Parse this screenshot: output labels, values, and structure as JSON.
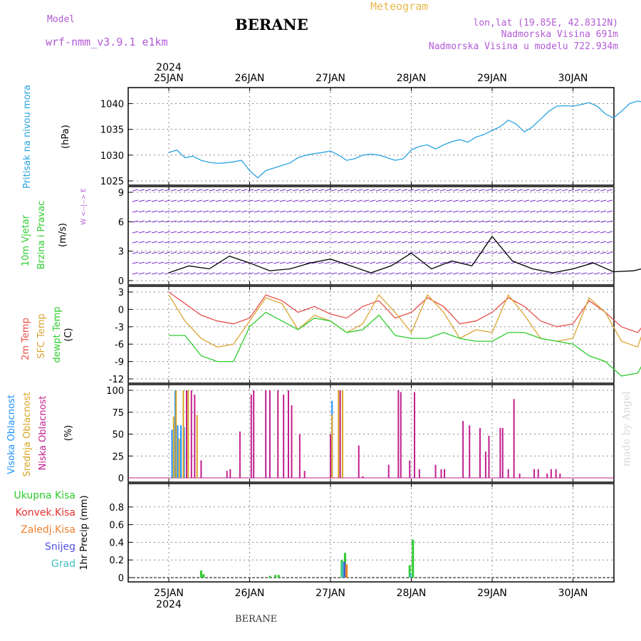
{
  "header": {
    "model_label": "Model",
    "model_name": "wrf-nmm_v3.9.1 e1km",
    "station": "BERANE",
    "product": "Meteogram",
    "lonlat": "lon,lat (19.85E, 42.8312N)",
    "elevation": "Nadmorska Visina 691m",
    "model_elevation": "Nadmorska Visina u modelu 722.934m",
    "footer_station": "BERANE",
    "watermark": "made by Angel"
  },
  "colors": {
    "pressure": "#29a3e0",
    "t2m": "#e8504a",
    "sfc": "#d9a534",
    "dewpt": "#2ecc2e",
    "high_cloud": "#1e90ff",
    "mid_cloud": "#daa520",
    "low_cloud": "#c21f8e",
    "total_precip": "#2ecc2e",
    "conv_precip": "#e83030",
    "frz_precip": "#f08030",
    "snow": "#5050e0",
    "graupel": "#40c0c0",
    "wind_barb": "#7b2fd0",
    "wind_speed": "#000000"
  },
  "time_axis": {
    "top_year": "2024",
    "bottom_year": "2024",
    "dates": [
      "25JAN",
      "26JAN",
      "27JAN",
      "28JAN",
      "29JAN",
      "30JAN"
    ]
  },
  "chart_data": [
    {
      "type": "line",
      "name": "pressure",
      "ylabel_main": "Pritisak na nivou mora",
      "ylabel_unit": "(hPa)",
      "ylim": [
        1025,
        1042
      ],
      "yticks": [
        "1025",
        "1030",
        "1035",
        "1040"
      ],
      "x_days": [
        0,
        0.1,
        0.2,
        0.3,
        0.4,
        0.5,
        0.6,
        0.7,
        0.8,
        0.9,
        1.0,
        1.1,
        1.2,
        1.3,
        1.4,
        1.5,
        1.6,
        1.7,
        1.8,
        1.9,
        2.0,
        2.1,
        2.2,
        2.3,
        2.4,
        2.5,
        2.6,
        2.7,
        2.8,
        2.9,
        3.0,
        3.1,
        3.2,
        3.3,
        3.4,
        3.5,
        3.6,
        3.7,
        3.8,
        3.9,
        4.0,
        4.1,
        4.2,
        4.3,
        4.4,
        4.5,
        4.6,
        4.7,
        4.8,
        4.9,
        5.0,
        5.1,
        5.2,
        5.3,
        5.4,
        5.5,
        5.6,
        5.7,
        5.8,
        5.9,
        6.0
      ],
      "series": [
        {
          "values": [
            1030.5,
            1031,
            1029.5,
            1029.8,
            1029,
            1028.6,
            1028.4,
            1028.5,
            1028.7,
            1029,
            1027,
            1025.6,
            1027,
            1027.5,
            1028,
            1028.5,
            1029.5,
            1030,
            1030.3,
            1030.5,
            1030.8,
            1030,
            1029,
            1029.3,
            1030,
            1030.2,
            1030,
            1029.5,
            1029,
            1029.3,
            1031,
            1031.7,
            1032,
            1031.2,
            1032,
            1032.6,
            1033,
            1032.5,
            1033.5,
            1034,
            1034.8,
            1035.5,
            1036.8,
            1036,
            1034.5,
            1035.5,
            1037,
            1038.5,
            1039.5,
            1039.6,
            1039.5,
            1039.8,
            1040.2,
            1039.5,
            1038,
            1037.2,
            1038.5,
            1040,
            1040.5,
            1040.2,
            1040.6
          ]
        }
      ]
    },
    {
      "type": "line",
      "name": "wind",
      "ylabel_main": "10m Vjetar",
      "ylabel_sub": "Brzina i Pravac",
      "ylabel_unit": "(m/s)",
      "compass_label": "W <--|--> E",
      "ylim": [
        0,
        9
      ],
      "yticks": [
        "0",
        "3",
        "6",
        "9"
      ],
      "x_days": [
        0,
        0.25,
        0.5,
        0.75,
        1.0,
        1.25,
        1.5,
        1.75,
        2.0,
        2.25,
        2.5,
        2.75,
        3.0,
        3.25,
        3.5,
        3.75,
        4.0,
        4.25,
        4.5,
        4.75,
        5.0,
        5.25,
        5.5,
        5.75,
        6.0
      ],
      "series": [
        {
          "values": [
            0.8,
            1.5,
            1.2,
            2.5,
            1.8,
            1.0,
            1.2,
            1.8,
            2.2,
            1.5,
            0.8,
            1.5,
            2.8,
            1.2,
            2.0,
            1.5,
            4.5,
            2.0,
            1.2,
            0.8,
            1.2,
            1.8,
            0.9,
            1.0,
            1.5
          ]
        }
      ]
    },
    {
      "type": "line",
      "name": "temperature",
      "ylabel_lines": [
        "2m Temp",
        "SFC Temp",
        "dewpt Temp"
      ],
      "ylabel_unit": "(C)",
      "ylim": [
        -12,
        3
      ],
      "yticks": [
        "-12",
        "-9",
        "-6",
        "-3",
        "0",
        "3"
      ],
      "x_days": [
        0,
        0.2,
        0.4,
        0.6,
        0.8,
        1.0,
        1.2,
        1.4,
        1.6,
        1.8,
        2.0,
        2.2,
        2.4,
        2.6,
        2.8,
        3.0,
        3.2,
        3.4,
        3.6,
        3.8,
        4.0,
        4.2,
        4.4,
        4.6,
        4.8,
        5.0,
        5.2,
        5.4,
        5.6,
        5.8,
        6.0
      ],
      "series": [
        {
          "name": "2m Temp",
          "values": [
            3,
            1,
            -1,
            -2,
            -2.5,
            -1.5,
            2.5,
            1.5,
            -0.5,
            0.5,
            -0.8,
            -1.5,
            0.5,
            1.5,
            -1.5,
            -0.5,
            2,
            0.5,
            -2.5,
            -2,
            -0.5,
            2,
            0.5,
            -2,
            -3,
            -2.5,
            1.5,
            -0.5,
            -3,
            -4,
            -0.5
          ]
        },
        {
          "name": "SFC Temp",
          "values": [
            2.5,
            -2,
            -5,
            -6.5,
            -6,
            -2,
            2,
            1,
            -3.5,
            -1,
            -2,
            -4,
            -2.5,
            2.5,
            -0.5,
            -4,
            2.5,
            -0.5,
            -5,
            -3.5,
            -4,
            2.5,
            -1,
            -5,
            -5.5,
            -5,
            2,
            -0.5,
            -5.5,
            -6.5,
            1.5
          ]
        },
        {
          "name": "dewpt Temp",
          "values": [
            -4.5,
            -4.5,
            -8,
            -9,
            -9,
            -3,
            -0.5,
            -2,
            -3.5,
            -1.5,
            -2,
            -4,
            -3.5,
            -1,
            -4.5,
            -5,
            -5,
            -4,
            -5,
            -5.5,
            -5.5,
            -4,
            -4,
            -5,
            -5.5,
            -6,
            -8,
            -9,
            -11.5,
            -11,
            -6
          ]
        }
      ]
    },
    {
      "type": "bar",
      "name": "cloud_cover",
      "ylabel_lines": [
        "Visoka Oblacnost",
        "Srednja Oblacnost",
        "Niska Oblacnost"
      ],
      "ylabel_unit": "(%)",
      "ylim": [
        0,
        100
      ],
      "yticks": [
        "0",
        "25",
        "50",
        "75",
        "100"
      ],
      "series": [
        {
          "name": "Visoka Oblacnost",
          "bars": [
            [
              0.04,
              55
            ],
            [
              0.08,
              100
            ],
            [
              0.11,
              60
            ],
            [
              0.15,
              60
            ],
            [
              0.19,
              58
            ],
            [
              2.02,
              88
            ]
          ]
        },
        {
          "name": "Srednja Oblacnost",
          "bars": [
            [
              0.06,
              70
            ],
            [
              0.09,
              100
            ],
            [
              0.13,
              45
            ],
            [
              0.18,
              100
            ],
            [
              0.24,
              100
            ],
            [
              0.35,
              72
            ],
            [
              2.02,
              72
            ],
            [
              2.1,
              100
            ],
            [
              2.15,
              100
            ]
          ]
        },
        {
          "name": "Niska Oblacnost",
          "bars": [
            [
              0.22,
              100
            ],
            [
              0.28,
              100
            ],
            [
              0.32,
              95
            ],
            [
              0.4,
              20
            ],
            [
              0.72,
              8
            ],
            [
              0.76,
              10
            ],
            [
              0.88,
              53
            ],
            [
              1.02,
              95
            ],
            [
              1.05,
              100
            ],
            [
              1.2,
              100
            ],
            [
              1.25,
              100
            ],
            [
              1.35,
              100
            ],
            [
              1.42,
              95
            ],
            [
              1.48,
              100
            ],
            [
              1.52,
              83
            ],
            [
              1.62,
              50
            ],
            [
              1.68,
              8
            ],
            [
              2.0,
              50
            ],
            [
              2.12,
              100
            ],
            [
              2.35,
              37
            ],
            [
              2.4,
              2
            ],
            [
              2.72,
              15
            ],
            [
              2.84,
              100
            ],
            [
              2.87,
              98
            ],
            [
              2.98,
              20
            ],
            [
              3.04,
              98
            ],
            [
              3.1,
              10
            ],
            [
              3.3,
              15
            ],
            [
              3.37,
              10
            ],
            [
              3.41,
              10
            ],
            [
              3.64,
              65
            ],
            [
              3.72,
              60
            ],
            [
              3.85,
              57
            ],
            [
              3.92,
              30
            ],
            [
              3.96,
              48
            ],
            [
              4.1,
              57
            ],
            [
              4.13,
              57
            ],
            [
              4.2,
              10
            ],
            [
              4.27,
              90
            ],
            [
              4.34,
              5
            ],
            [
              4.52,
              10
            ],
            [
              4.57,
              10
            ],
            [
              4.68,
              5
            ],
            [
              4.73,
              10
            ],
            [
              4.79,
              10
            ],
            [
              4.84,
              5
            ]
          ]
        }
      ]
    },
    {
      "type": "bar",
      "name": "precipitation",
      "ylabel_main": "1hr Precip",
      "ylabel_unit": "(mm)",
      "legend": [
        "Ukupna Kisa",
        "Konvek.Kisa",
        "Zaledj.Kisa",
        "Snijeg",
        "Grad"
      ],
      "ylim": [
        0,
        1.0
      ],
      "yticks": [
        "0",
        "0.2",
        "0.4",
        "0.6",
        "0.8"
      ],
      "series": [
        {
          "name": "Ukupna Kisa",
          "bars": [
            [
              0.4,
              0.08
            ],
            [
              0.43,
              0.04
            ],
            [
              1.25,
              0.02
            ],
            [
              1.32,
              0.03
            ],
            [
              1.36,
              0.03
            ],
            [
              2.14,
              0.2
            ],
            [
              2.18,
              0.28
            ],
            [
              2.98,
              0.14
            ],
            [
              3.02,
              0.43
            ]
          ]
        },
        {
          "name": "Snijeg",
          "bars": [
            [
              2.17,
              0.18
            ]
          ]
        },
        {
          "name": "Grad",
          "bars": [
            [
              2.15,
              0.18
            ],
            [
              2.99,
              0.05
            ]
          ]
        },
        {
          "name": "Zaledj.Kisa",
          "bars": [
            [
              2.2,
              0.15
            ]
          ]
        }
      ]
    }
  ]
}
